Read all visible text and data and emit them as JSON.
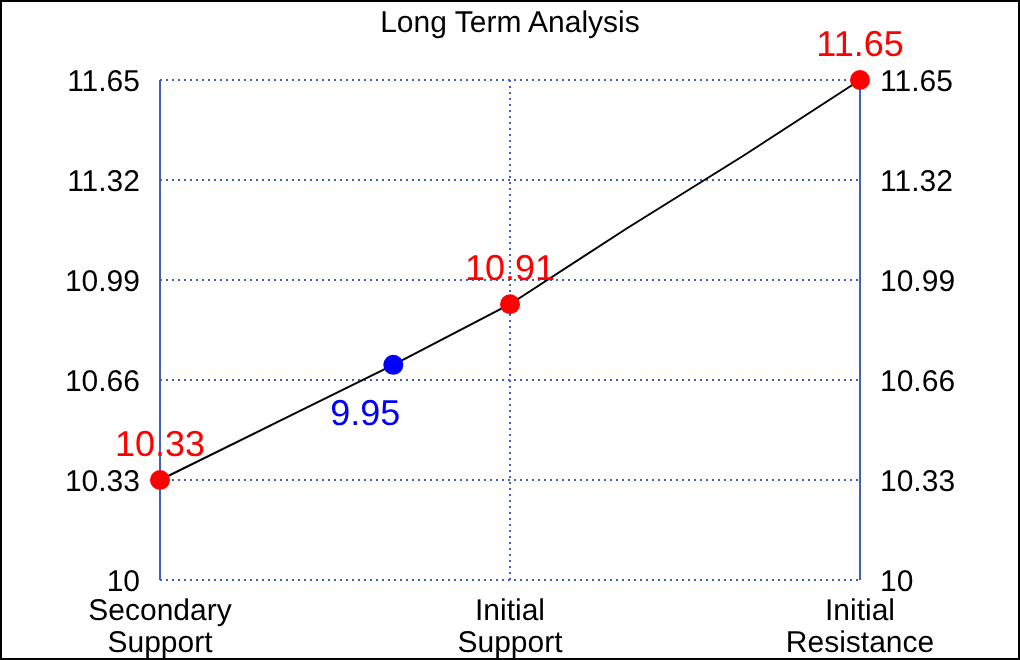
{
  "chart_data": {
    "type": "line",
    "title": "Long Term Analysis",
    "categories": [
      "Secondary\nSupport",
      null,
      null,
      "Initial\nSupport",
      null,
      null,
      "Initial\nResistance"
    ],
    "ylim": [
      10,
      11.65
    ],
    "yticks": [
      10,
      10.33,
      10.66,
      10.99,
      11.32,
      11.65
    ],
    "y2lim": [
      10,
      11.65
    ],
    "y2ticks": [
      10,
      10.33,
      10.66,
      10.99,
      11.32,
      11.65
    ],
    "grid": true,
    "series": [
      {
        "color": "#000000",
        "values": [
          10.33,
          10.52,
          10.71,
          10.91,
          11.16,
          11.4,
          11.65
        ]
      },
      {
        "type": "scatter",
        "color": "#ff0000",
        "values": [
          10.33,
          null,
          null,
          10.91,
          null,
          null,
          11.65
        ],
        "value_labels": [
          "10.33",
          null,
          null,
          "10.91",
          null,
          null,
          "11.65"
        ]
      },
      {
        "type": "scatter",
        "color": "#0000ff",
        "values": [
          null,
          null,
          10.71,
          null,
          null,
          null,
          null
        ]
      }
    ],
    "annotations": [
      "9.95"
    ]
  }
}
